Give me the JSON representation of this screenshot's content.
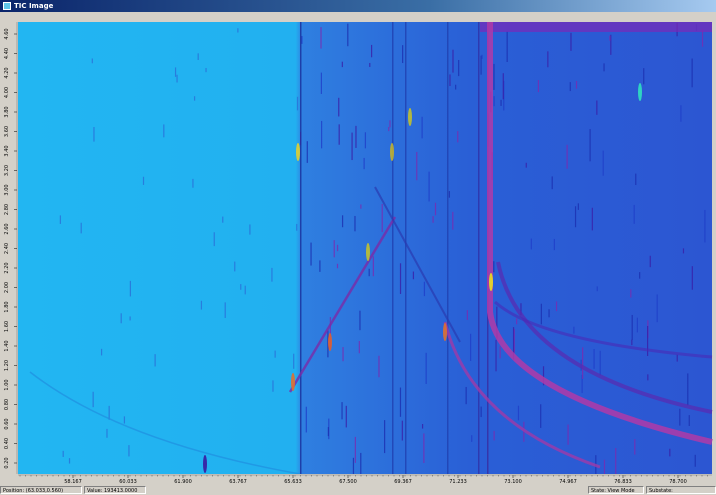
{
  "window": {
    "title": "TIC Image"
  },
  "x_axis": {
    "labels": [
      "58.167",
      "60.033",
      "61.900",
      "63.767",
      "65.633",
      "67.500",
      "69.367",
      "71.233",
      "73.100",
      "74.967",
      "76.833",
      "78.700"
    ]
  },
  "y_axis": {
    "labels": [
      "4.60",
      "4.40",
      "4.20",
      "4.00",
      "3.80",
      "3.60",
      "3.40",
      "3.20",
      "3.00",
      "2.80",
      "2.60",
      "2.40",
      "2.20",
      "2.00",
      "1.80",
      "1.60",
      "1.40",
      "1.20",
      "1.00",
      "0.80",
      "0.60",
      "0.40",
      "0.20"
    ]
  },
  "status": {
    "position": "Position: (63.033,0.560)",
    "value": "Value: 193413.0000",
    "state": "State: View Mode",
    "substate": "Substate:"
  }
}
